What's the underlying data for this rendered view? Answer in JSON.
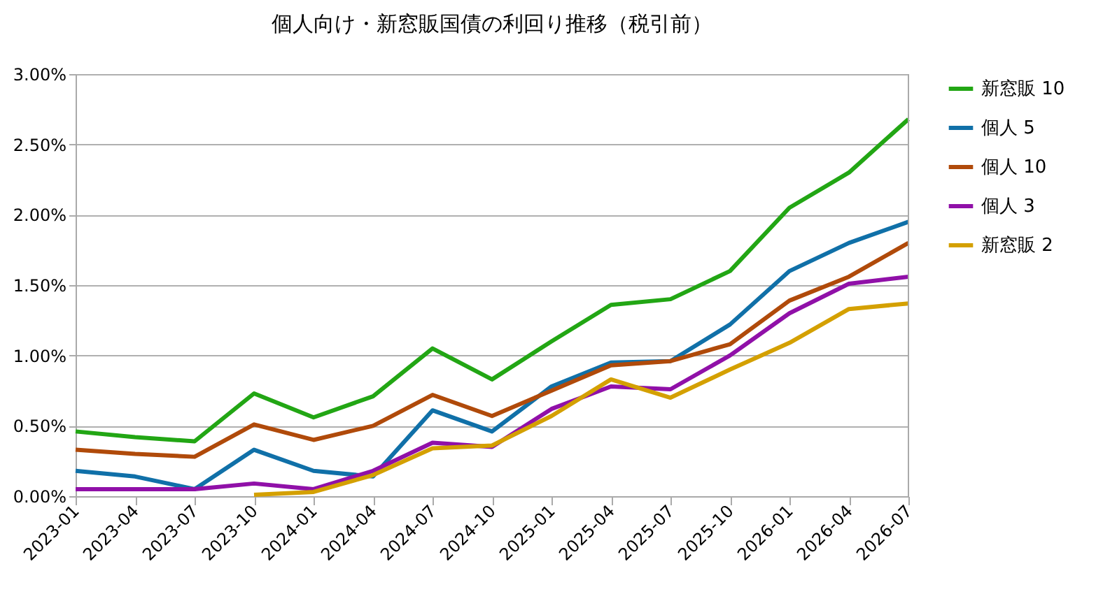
{
  "chart_data": {
    "type": "line",
    "title": "個人向け・新窓販国債の利回り推移（税引前）",
    "categories": [
      "2023-01",
      "2023-04",
      "2023-07",
      "2023-10",
      "2024-01",
      "2024-04",
      "2024-07",
      "2024-10",
      "2025-01",
      "2025-04",
      "2025-07",
      "2025-10",
      "2026-01",
      "2026-04",
      "2026-07"
    ],
    "series": [
      {
        "name": "新窓販 10",
        "color": "#22a614",
        "values": [
          0.46,
          0.42,
          0.39,
          0.73,
          0.56,
          0.71,
          1.05,
          0.83,
          1.1,
          1.36,
          1.4,
          1.6,
          2.05,
          2.3,
          2.68
        ]
      },
      {
        "name": "個人 5",
        "color": "#1070a8",
        "values": [
          0.18,
          0.14,
          0.05,
          0.33,
          0.18,
          0.14,
          0.61,
          0.46,
          0.78,
          0.95,
          0.96,
          1.22,
          1.6,
          1.8,
          1.95
        ]
      },
      {
        "name": "個人 10",
        "color": "#b04a0a",
        "values": [
          0.33,
          0.3,
          0.28,
          0.51,
          0.4,
          0.5,
          0.72,
          0.57,
          0.75,
          0.93,
          0.96,
          1.08,
          1.39,
          1.56,
          1.8
        ]
      },
      {
        "name": "個人 3",
        "color": "#9010a8",
        "values": [
          0.05,
          0.05,
          0.05,
          0.09,
          0.05,
          0.18,
          0.38,
          0.35,
          0.62,
          0.78,
          0.76,
          1.0,
          1.3,
          1.51,
          1.56
        ]
      },
      {
        "name": "新窓販 2",
        "color": "#d4a000",
        "values": [
          null,
          null,
          null,
          0.01,
          0.03,
          0.15,
          0.34,
          0.36,
          0.57,
          0.83,
          0.7,
          0.9,
          1.09,
          1.33,
          1.37
        ]
      }
    ],
    "ylim": [
      0,
      3
    ],
    "yticks": [
      {
        "value": 0,
        "label": "0.00%"
      },
      {
        "value": 0.5,
        "label": "0.50%"
      },
      {
        "value": 1,
        "label": "1.00%"
      },
      {
        "value": 1.5,
        "label": "1.50%"
      },
      {
        "value": 2,
        "label": "2.00%"
      },
      {
        "value": 2.5,
        "label": "2.50%"
      },
      {
        "value": 3,
        "label": "3.00%"
      }
    ],
    "grid": "y",
    "legend": "right",
    "marker": "none",
    "line_style": "solid"
  }
}
